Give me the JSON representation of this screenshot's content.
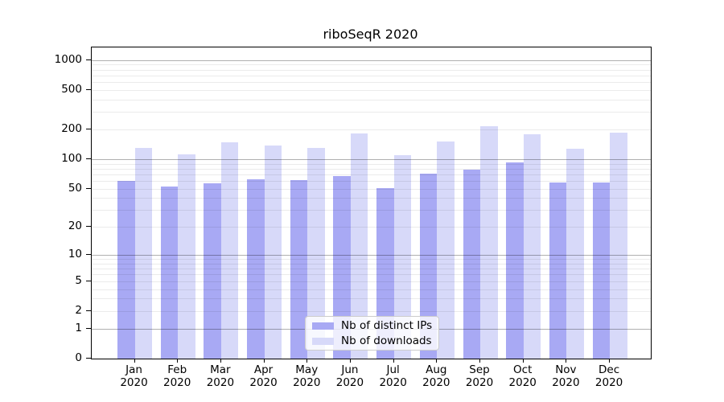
{
  "title": "riboSeqR 2020",
  "legend": {
    "items": [
      {
        "label": "Nb of distinct IPs",
        "color": "#a8a9f4"
      },
      {
        "label": "Nb of downloads",
        "color": "#d7d9f9"
      }
    ]
  },
  "chart_data": {
    "type": "bar",
    "title": "riboSeqR 2020",
    "categories": [
      "Jan",
      "Feb",
      "Mar",
      "Apr",
      "May",
      "Jun",
      "Jul",
      "Aug",
      "Sep",
      "Oct",
      "Nov",
      "Dec"
    ],
    "category_year": "2020",
    "series": [
      {
        "name": "Nb of distinct IPs",
        "color": "#a8a9f4",
        "values": [
          60,
          53,
          57,
          63,
          61,
          67,
          51,
          71,
          79,
          93,
          58,
          58
        ]
      },
      {
        "name": "Nb of downloads",
        "color": "#d7d9f9",
        "values": [
          130,
          112,
          148,
          138,
          130,
          184,
          109,
          152,
          216,
          180,
          128,
          185
        ]
      }
    ],
    "xlabel": "",
    "ylabel": "",
    "yscale": "log1p",
    "ylim": [
      0,
      1340
    ],
    "yticks": [
      0,
      1,
      2,
      5,
      10,
      20,
      50,
      100,
      200,
      500,
      1000
    ],
    "grid_major": [
      1,
      10,
      100,
      1000
    ],
    "grid_minor": [
      2,
      3,
      4,
      5,
      6,
      7,
      8,
      9,
      20,
      30,
      40,
      50,
      60,
      70,
      80,
      90,
      200,
      300,
      400,
      500,
      600,
      700,
      800,
      900
    ],
    "grid_color_major": "rgba(0,0,0,0.31)",
    "grid_color_minor": "rgba(0,0,0,0.08)",
    "legend_position": "lower center"
  }
}
